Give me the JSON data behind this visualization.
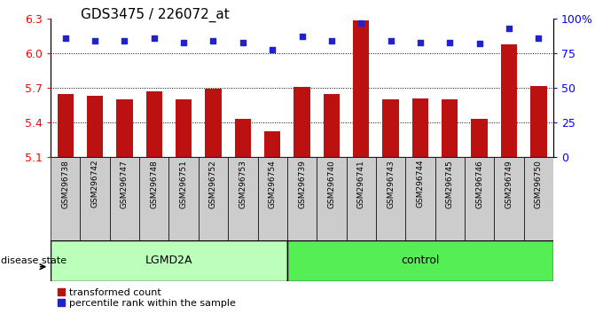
{
  "title": "GDS3475 / 226072_at",
  "samples": [
    "GSM296738",
    "GSM296742",
    "GSM296747",
    "GSM296748",
    "GSM296751",
    "GSM296752",
    "GSM296753",
    "GSM296754",
    "GSM296739",
    "GSM296740",
    "GSM296741",
    "GSM296743",
    "GSM296744",
    "GSM296745",
    "GSM296746",
    "GSM296749",
    "GSM296750"
  ],
  "bar_values": [
    5.65,
    5.63,
    5.6,
    5.67,
    5.6,
    5.69,
    5.43,
    5.32,
    5.71,
    5.65,
    6.29,
    5.6,
    5.61,
    5.6,
    5.43,
    6.08,
    5.72
  ],
  "percentile_values": [
    86,
    84,
    84,
    86,
    83,
    84,
    83,
    78,
    87,
    84,
    97,
    84,
    83,
    83,
    82,
    93,
    86
  ],
  "bar_color": "#bb1111",
  "dot_color": "#2222cc",
  "ylim_left": [
    5.1,
    6.3
  ],
  "ylim_right": [
    0,
    100
  ],
  "yticks_left": [
    5.1,
    5.4,
    5.7,
    6.0,
    6.3
  ],
  "yticks_right": [
    0,
    25,
    50,
    75,
    100
  ],
  "ytick_labels_right": [
    "0",
    "25",
    "50",
    "75",
    "100%"
  ],
  "group_labels": [
    "LGMD2A",
    "control"
  ],
  "group_sizes": [
    8,
    9
  ],
  "group_colors": [
    "#bbffbb",
    "#55ee55"
  ],
  "disease_state_label": "disease state",
  "legend_bar_label": "transformed count",
  "legend_dot_label": "percentile rank within the sample",
  "bar_width": 0.55,
  "baseline": 5.1,
  "sample_bg_color": "#cccccc",
  "title_fontsize": 11,
  "axis_fontsize": 9,
  "sample_fontsize": 6.5,
  "legend_fontsize": 8
}
